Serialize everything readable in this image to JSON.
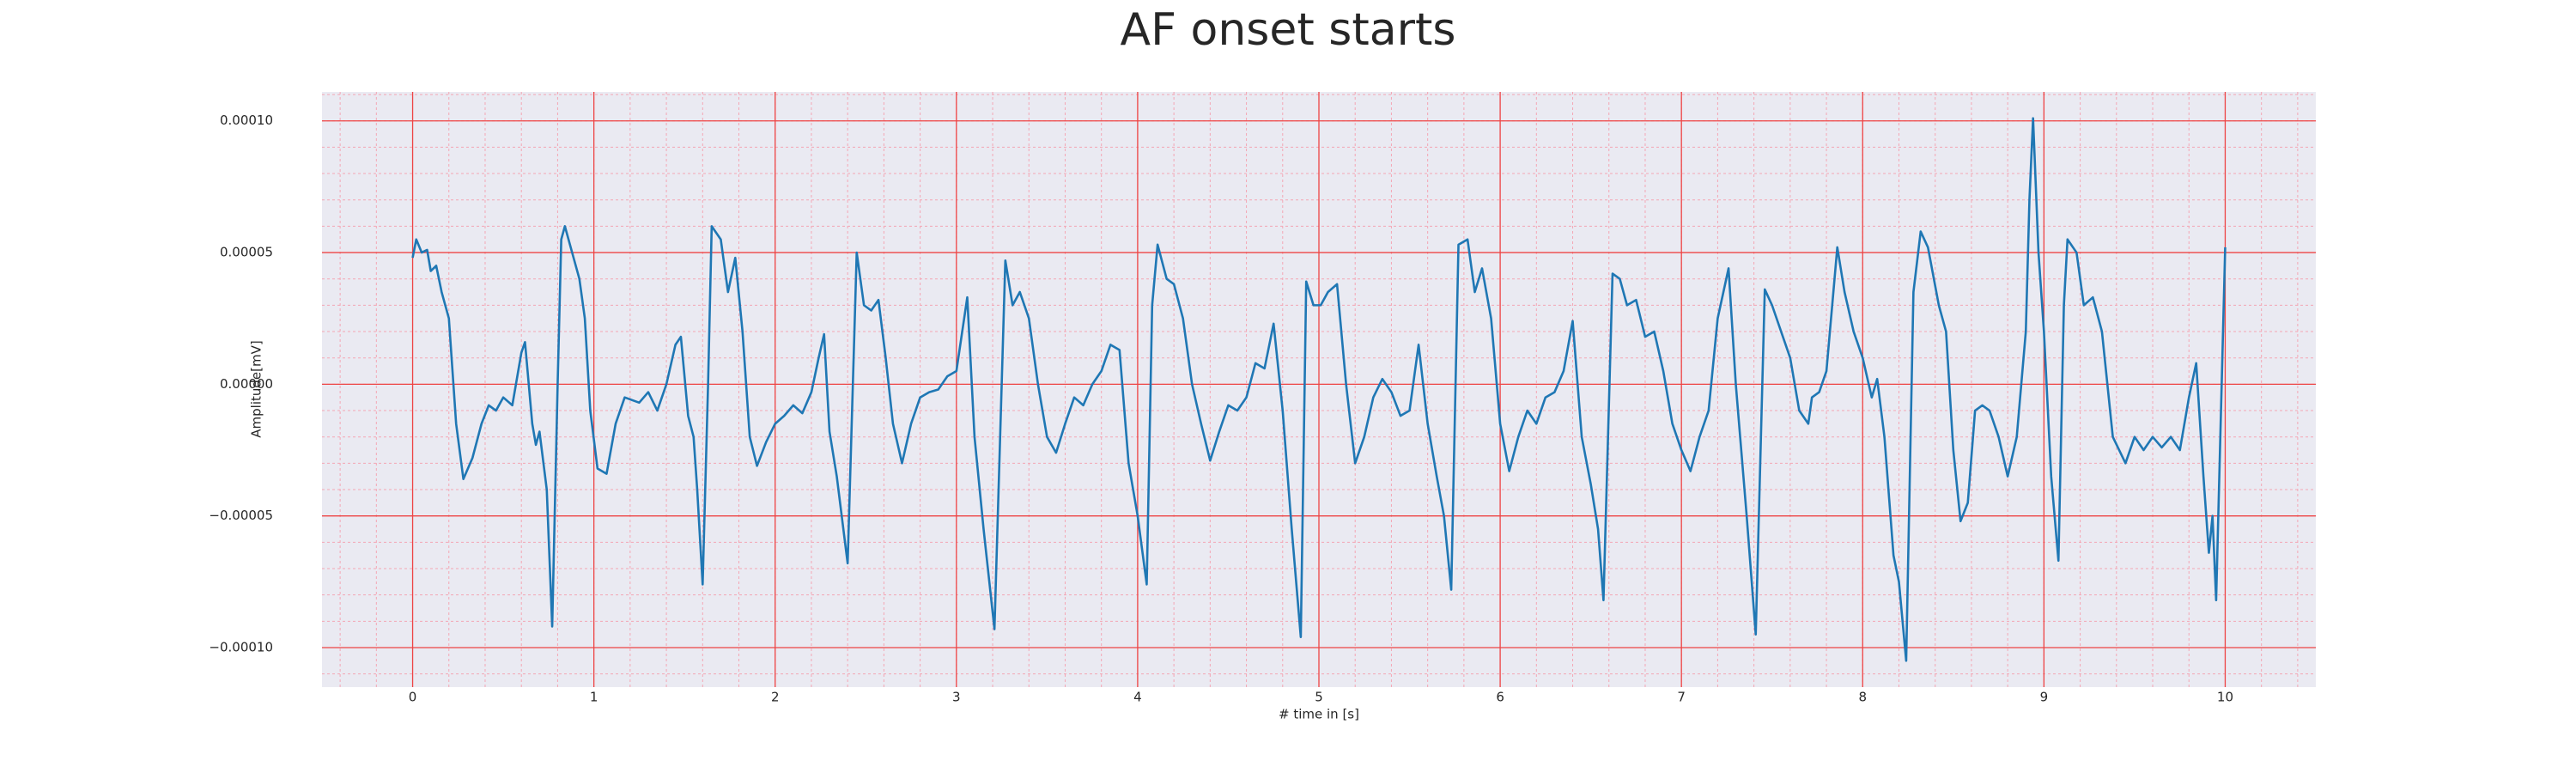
{
  "chart_data": {
    "type": "line",
    "title": "AF onset starts",
    "xlabel": "# time in [s]",
    "ylabel": "Amplitude[mV]",
    "color": "#1f77b4",
    "grid": true,
    "minor_grid": true,
    "xlim": [
      -0.5,
      10.5
    ],
    "ylim": [
      -0.000115,
      0.000111
    ],
    "xticks": [
      0,
      1,
      2,
      3,
      4,
      5,
      6,
      7,
      8,
      9,
      10
    ],
    "yticks": [
      {
        "value": -0.0001,
        "label": "−0.00010"
      },
      {
        "value": -5e-05,
        "label": "−0.00005"
      },
      {
        "value": 0,
        "label": "0.00000"
      },
      {
        "value": 5e-05,
        "label": "0.00005"
      },
      {
        "value": 0.0001,
        "label": "0.00010"
      }
    ],
    "x": [
      0,
      0.02,
      0.05,
      0.08,
      0.1,
      0.13,
      0.16,
      0.2,
      0.24,
      0.28,
      0.33,
      0.38,
      0.42,
      0.46,
      0.5,
      0.55,
      0.6,
      0.62,
      0.66,
      0.68,
      0.7,
      0.74,
      0.77,
      0.8,
      0.82,
      0.84,
      0.88,
      0.92,
      0.95,
      0.98,
      1.02,
      1.07,
      1.12,
      1.17,
      1.25,
      1.3,
      1.35,
      1.4,
      1.45,
      1.48,
      1.52,
      1.55,
      1.57,
      1.6,
      1.63,
      1.65,
      1.7,
      1.74,
      1.78,
      1.82,
      1.86,
      1.9,
      1.95,
      2.0,
      2.05,
      2.1,
      2.15,
      2.2,
      2.24,
      2.27,
      2.3,
      2.34,
      2.4,
      2.45,
      2.49,
      2.53,
      2.57,
      2.61,
      2.65,
      2.7,
      2.75,
      2.8,
      2.85,
      2.9,
      2.95,
      3.0,
      3.06,
      3.1,
      3.15,
      3.21,
      3.27,
      3.31,
      3.35,
      3.4,
      3.45,
      3.5,
      3.55,
      3.6,
      3.65,
      3.7,
      3.75,
      3.8,
      3.85,
      3.9,
      3.95,
      4.0,
      4.05,
      4.08,
      4.11,
      4.16,
      4.2,
      4.25,
      4.3,
      4.35,
      4.4,
      4.45,
      4.5,
      4.55,
      4.6,
      4.65,
      4.7,
      4.75,
      4.8,
      4.85,
      4.9,
      4.93,
      4.97,
      5.01,
      5.05,
      5.1,
      5.15,
      5.2,
      5.25,
      5.3,
      5.35,
      5.4,
      5.45,
      5.5,
      5.55,
      5.6,
      5.65,
      5.69,
      5.73,
      5.77,
      5.82,
      5.86,
      5.9,
      5.95,
      6.0,
      6.05,
      6.1,
      6.15,
      6.2,
      6.25,
      6.3,
      6.35,
      6.4,
      6.45,
      6.5,
      6.54,
      6.57,
      6.62,
      6.66,
      6.7,
      6.75,
      6.8,
      6.85,
      6.9,
      6.95,
      7.0,
      7.05,
      7.1,
      7.15,
      7.2,
      7.26,
      7.3,
      7.36,
      7.41,
      7.46,
      7.5,
      7.55,
      7.6,
      7.65,
      7.7,
      7.72,
      7.76,
      7.8,
      7.86,
      7.9,
      7.95,
      8.0,
      8.05,
      8.08,
      8.12,
      8.17,
      8.2,
      8.24,
      8.28,
      8.32,
      8.36,
      8.42,
      8.46,
      8.5,
      8.54,
      8.58,
      8.62,
      8.66,
      8.7,
      8.75,
      8.8,
      8.85,
      8.9,
      8.92,
      8.94,
      8.97,
      9.0,
      9.04,
      9.08,
      9.11,
      9.13,
      9.18,
      9.22,
      9.27,
      9.32,
      9.38,
      9.45,
      9.5,
      9.55,
      9.6,
      9.65,
      9.7,
      9.75,
      9.8,
      9.84,
      9.88,
      9.91,
      9.93,
      9.95,
      10.0
    ],
    "values": [
      4.8e-05,
      5.5e-05,
      5e-05,
      5.1e-05,
      4.3e-05,
      4.5e-05,
      3.5e-05,
      2.5e-05,
      -1.5e-05,
      -3.6e-05,
      -2.8e-05,
      -1.5e-05,
      -8e-06,
      -1e-05,
      -5e-06,
      -8e-06,
      1.2e-05,
      1.6e-05,
      -1.5e-05,
      -2.3e-05,
      -1.8e-05,
      -4e-05,
      -9.2e-05,
      0,
      5.5e-05,
      6e-05,
      5e-05,
      4e-05,
      2.5e-05,
      -1e-05,
      -3.2e-05,
      -3.4e-05,
      -1.5e-05,
      -5e-06,
      -7e-06,
      -3e-06,
      -1e-05,
      0,
      1.5e-05,
      1.8e-05,
      -1.2e-05,
      -2e-05,
      -4e-05,
      -7.6e-05,
      0,
      6e-05,
      5.5e-05,
      3.5e-05,
      4.8e-05,
      2e-05,
      -2e-05,
      -3.1e-05,
      -2.2e-05,
      -1.5e-05,
      -1.2e-05,
      -8e-06,
      -1.1e-05,
      -3e-06,
      1e-05,
      1.9e-05,
      -1.8e-05,
      -3.5e-05,
      -6.8e-05,
      5e-05,
      3e-05,
      2.8e-05,
      3.2e-05,
      1e-05,
      -1.5e-05,
      -3e-05,
      -1.5e-05,
      -5e-06,
      -3e-06,
      -2e-06,
      3e-06,
      5e-06,
      3.3e-05,
      -2e-05,
      -5.5e-05,
      -9.3e-05,
      4.7e-05,
      3e-05,
      3.5e-05,
      2.5e-05,
      0,
      -2e-05,
      -2.6e-05,
      -1.5e-05,
      -5e-06,
      -8e-06,
      0,
      5e-06,
      1.5e-05,
      1.3e-05,
      -3e-05,
      -5e-05,
      -7.6e-05,
      3e-05,
      5.3e-05,
      4e-05,
      3.8e-05,
      2.5e-05,
      0,
      -1.5e-05,
      -2.9e-05,
      -1.8e-05,
      -8e-06,
      -1e-05,
      -5e-06,
      8e-06,
      6e-06,
      2.3e-05,
      -1e-05,
      -5.5e-05,
      -9.6e-05,
      3.9e-05,
      3e-05,
      3e-05,
      3.5e-05,
      3.8e-05,
      0,
      -3e-05,
      -2e-05,
      -5e-06,
      2e-06,
      -3e-06,
      -1.2e-05,
      -1e-05,
      1.5e-05,
      -1.5e-05,
      -3.5e-05,
      -5e-05,
      -7.8e-05,
      5.3e-05,
      5.5e-05,
      3.5e-05,
      4.4e-05,
      2.5e-05,
      -1.5e-05,
      -3.3e-05,
      -2e-05,
      -1e-05,
      -1.5e-05,
      -5e-06,
      -3e-06,
      5e-06,
      2.4e-05,
      -2e-05,
      -3.8e-05,
      -5.5e-05,
      -8.2e-05,
      4.2e-05,
      4e-05,
      3e-05,
      3.2e-05,
      1.8e-05,
      2e-05,
      5e-06,
      -1.5e-05,
      -2.5e-05,
      -3.3e-05,
      -2e-05,
      -1e-05,
      2.5e-05,
      4.4e-05,
      0,
      -5e-05,
      -9.5e-05,
      3.6e-05,
      3e-05,
      2e-05,
      1e-05,
      -1e-05,
      -1.5e-05,
      -5e-06,
      -3e-06,
      5e-06,
      5.2e-05,
      3.5e-05,
      2e-05,
      1e-05,
      -5e-06,
      2e-06,
      -2e-05,
      -6.5e-05,
      -7.5e-05,
      -0.000105,
      3.5e-05,
      5.8e-05,
      5.2e-05,
      3e-05,
      2e-05,
      -2.5e-05,
      -5.2e-05,
      -4.5e-05,
      -1e-05,
      -8e-06,
      -1e-05,
      -2e-05,
      -3.5e-05,
      -2e-05,
      2e-05,
      7e-05,
      0.000101,
      5e-05,
      2e-05,
      -3.5e-05,
      -6.7e-05,
      3e-05,
      5.5e-05,
      5e-05,
      3e-05,
      3.3e-05,
      2e-05,
      -2e-05,
      -3e-05,
      -2e-05,
      -2.5e-05,
      -2e-05,
      -2.4e-05,
      -2e-05,
      -2.5e-05,
      -5e-06,
      8e-06,
      -3.5e-05,
      -6.4e-05,
      -5e-05,
      -8.2e-05,
      5.2e-05
    ]
  }
}
